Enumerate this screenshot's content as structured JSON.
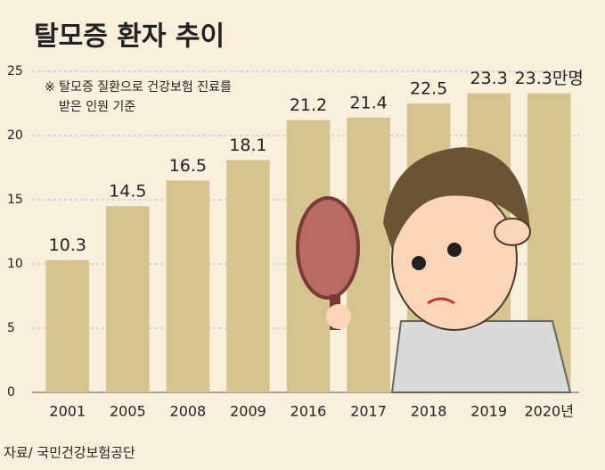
{
  "chart_data": {
    "type": "bar",
    "title": "탈모증 환자 추이",
    "annotation": [
      "※ 탈모증 질환으로 건강보험 진료를",
      "받은 인원 기준"
    ],
    "source": "자료/ 국민건강보험공단",
    "categories": [
      "2001",
      "2005",
      "2008",
      "2009",
      "2016",
      "2017",
      "2018",
      "2019",
      "2020년"
    ],
    "values": [
      10.3,
      14.5,
      16.5,
      18.1,
      21.2,
      21.4,
      22.5,
      23.3,
      23.3
    ],
    "value_labels": [
      "10.3",
      "14.5",
      "16.5",
      "18.1",
      "21.2",
      "21.4",
      "22.5",
      "23.3",
      "23.3만명"
    ],
    "color": "#d5c48e",
    "ylim": [
      0,
      25
    ],
    "yticks": [
      0,
      5,
      10,
      15,
      20,
      25
    ],
    "grid": true
  }
}
